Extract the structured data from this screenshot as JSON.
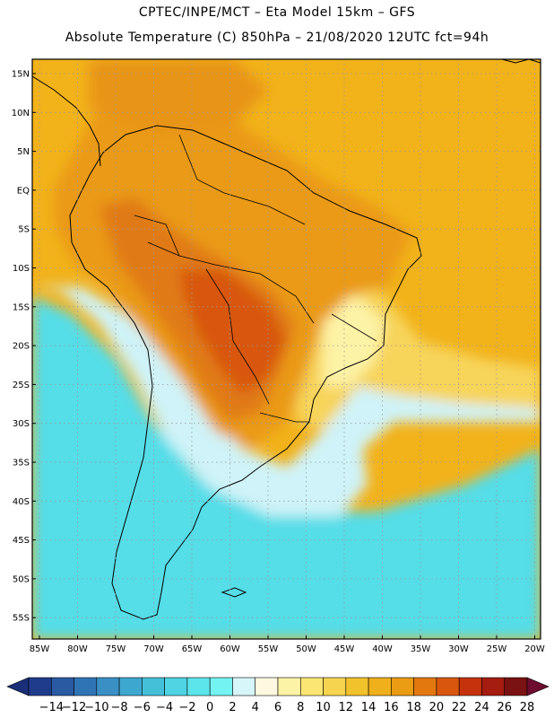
{
  "header": {
    "line1": "CPTEC/INPE/MCT –  Eta Model 15km – GFS",
    "line2": "Absolute Temperature (C) 850hPa – 21/08/2020 12UTC fct=94h"
  },
  "map": {
    "lat_ticks": [
      "15N",
      "10N",
      "5N",
      "EQ",
      "5S",
      "10S",
      "15S",
      "20S",
      "25S",
      "30S",
      "35S",
      "40S",
      "45S",
      "50S",
      "55S"
    ],
    "lon_ticks": [
      "85W",
      "80W",
      "75W",
      "70W",
      "65W",
      "60W",
      "55W",
      "50W",
      "45W",
      "40W",
      "35W",
      "30W",
      "25W",
      "20W"
    ],
    "field_colors": {
      "land_hot": "#e07a18",
      "land_warm": "#ea9a14",
      "ocean_warm": "#f2b21a",
      "ocean_mild": "#f7d45a",
      "cold_pale": "#cff3f8",
      "cold_cyan": "#54dde8",
      "cold_blue": "#3aa9cf",
      "cold_deep": "#2d64ad",
      "cold_navy": "#1f3f8e"
    }
  },
  "colorbar": {
    "labels": [
      "-14",
      "-12",
      "-10",
      "-8",
      "-6",
      "-4",
      "-2",
      "0",
      "2",
      "4",
      "6",
      "8",
      "10",
      "12",
      "14",
      "16",
      "18",
      "20",
      "22",
      "24",
      "26",
      "28"
    ],
    "colors": [
      "#1f3c8c",
      "#2a5aa2",
      "#2f75b6",
      "#3a8fc4",
      "#3ea7d0",
      "#44c0d8",
      "#4ed4e2",
      "#5de5ec",
      "#74f3f3",
      "#d6f6fa",
      "#fff8e0",
      "#fdf3a6",
      "#fbe673",
      "#f7d450",
      "#f2c22c",
      "#efb01b",
      "#ea9c13",
      "#e3780f",
      "#d8570d",
      "#c5330c",
      "#a41d10",
      "#7a1112"
    ],
    "left_cap_color": "#1a2f78",
    "right_cap_color": "#6d0c2e"
  }
}
